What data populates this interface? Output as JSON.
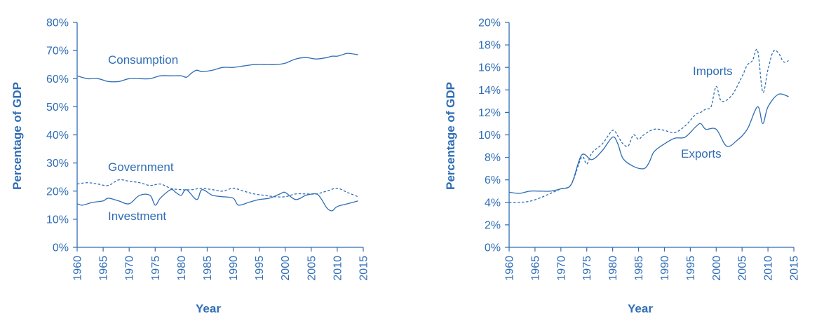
{
  "chart_data": [
    {
      "type": "line",
      "xlabel": "Year",
      "ylabel": "Percentage of GDP",
      "xlim": [
        1960,
        2015
      ],
      "ylim": [
        0,
        80
      ],
      "x_ticks": [
        "1960",
        "1965",
        "1970",
        "1975",
        "1980",
        "1985",
        "1990",
        "1995",
        "2000",
        "2005",
        "2010",
        "2015"
      ],
      "y_ticks": [
        "0%",
        "10%",
        "20%",
        "30%",
        "40%",
        "50%",
        "60%",
        "70%",
        "80%"
      ],
      "grid": false,
      "legend": "none",
      "series": [
        {
          "name": "Consumption",
          "style": "solid",
          "x": [
            1960,
            1962,
            1964,
            1966,
            1968,
            1970,
            1972,
            1974,
            1976,
            1978,
            1980,
            1981,
            1982,
            1983,
            1984,
            1986,
            1988,
            1990,
            1992,
            1994,
            1996,
            1998,
            2000,
            2002,
            2004,
            2006,
            2008,
            2009,
            2010,
            2011,
            2012,
            2014
          ],
          "y": [
            61,
            60,
            60,
            59,
            59,
            60,
            60,
            60,
            61,
            61,
            61,
            60.5,
            62,
            63,
            62.5,
            63,
            64,
            64,
            64.5,
            65,
            65,
            65,
            65.5,
            67,
            67.5,
            67,
            67.5,
            68,
            68,
            68.5,
            69,
            68.5
          ]
        },
        {
          "name": "Government",
          "style": "dashed",
          "x": [
            1960,
            1962,
            1964,
            1966,
            1968,
            1970,
            1972,
            1974,
            1976,
            1978,
            1980,
            1982,
            1984,
            1986,
            1988,
            1990,
            1992,
            1994,
            1996,
            1998,
            2000,
            2002,
            2004,
            2006,
            2008,
            2010,
            2012,
            2014
          ],
          "y": [
            22.5,
            23,
            22.5,
            22,
            24,
            23.5,
            23,
            22,
            22.5,
            21,
            20.5,
            20.5,
            21,
            20.5,
            20,
            21,
            20,
            19,
            18.5,
            18,
            18,
            19,
            19,
            19,
            20,
            21,
            19.5,
            18
          ]
        },
        {
          "name": "Investment",
          "style": "solid",
          "x": [
            1960,
            1961,
            1963,
            1965,
            1966,
            1968,
            1970,
            1972,
            1974,
            1975,
            1976,
            1978,
            1979,
            1980,
            1981,
            1983,
            1984,
            1986,
            1988,
            1990,
            1991,
            1993,
            1995,
            1997,
            1999,
            2000,
            2002,
            2004,
            2006,
            2007,
            2008,
            2009,
            2010,
            2012,
            2014
          ],
          "y": [
            15.5,
            15,
            16,
            16.5,
            17.5,
            16.5,
            15.5,
            18.5,
            18.5,
            15,
            17.5,
            20.5,
            19.5,
            18.5,
            20.5,
            17,
            20.5,
            18.5,
            18,
            17.5,
            15,
            16,
            17,
            17.5,
            19,
            19.5,
            17,
            18.5,
            19,
            17,
            14,
            13,
            14.5,
            15.5,
            16.5
          ]
        }
      ],
      "annotations": [
        "Consumption",
        "Government",
        "Investment"
      ]
    },
    {
      "type": "line",
      "xlabel": "Year",
      "ylabel": "Percentage of GDP",
      "xlim": [
        1960,
        2015
      ],
      "ylim": [
        0,
        20
      ],
      "x_ticks": [
        "1960",
        "1965",
        "1970",
        "1975",
        "1980",
        "1985",
        "1990",
        "1995",
        "2000",
        "2005",
        "2010",
        "2015"
      ],
      "y_ticks": [
        "0%",
        "2%",
        "4%",
        "6%",
        "8%",
        "10%",
        "12%",
        "14%",
        "16%",
        "18%",
        "20%"
      ],
      "grid": false,
      "legend": "none",
      "series": [
        {
          "name": "Imports",
          "style": "dashed",
          "x": [
            1960,
            1962,
            1964,
            1966,
            1968,
            1970,
            1972,
            1974,
            1975,
            1976,
            1978,
            1980,
            1981,
            1982,
            1983,
            1984,
            1985,
            1986,
            1988,
            1990,
            1992,
            1994,
            1996,
            1997,
            1998,
            1999,
            2000,
            2001,
            2003,
            2005,
            2006,
            2007,
            2008,
            2009,
            2010,
            2011,
            2012,
            2013,
            2014
          ],
          "y": [
            4,
            4,
            4.1,
            4.4,
            4.8,
            5.2,
            5.6,
            8,
            7.4,
            8.4,
            9.2,
            10.4,
            9.9,
            9.2,
            9,
            10,
            9.6,
            10,
            10.5,
            10.4,
            10.2,
            10.8,
            11.8,
            12,
            12.3,
            12.5,
            14.3,
            13,
            13.5,
            15.2,
            16.2,
            16.6,
            17.5,
            13.8,
            15.8,
            17.4,
            17.3,
            16.5,
            16.6
          ]
        },
        {
          "name": "Exports",
          "style": "solid",
          "x": [
            1960,
            1962,
            1964,
            1966,
            1968,
            1970,
            1972,
            1974,
            1976,
            1978,
            1980,
            1981,
            1982,
            1984,
            1986,
            1987,
            1988,
            1990,
            1992,
            1994,
            1996,
            1997,
            1998,
            2000,
            2002,
            2004,
            2006,
            2008,
            2009,
            2010,
            2012,
            2014
          ],
          "y": [
            4.9,
            4.8,
            5,
            5,
            5,
            5.2,
            5.6,
            8.2,
            7.8,
            8.6,
            9.8,
            9.2,
            7.9,
            7.2,
            7,
            7.5,
            8.5,
            9.2,
            9.7,
            9.8,
            10.7,
            11,
            10.5,
            10.5,
            9,
            9.5,
            10.5,
            12.5,
            11,
            12.5,
            13.6,
            13.4
          ]
        }
      ],
      "annotations": [
        "Imports",
        "Exports"
      ]
    }
  ]
}
